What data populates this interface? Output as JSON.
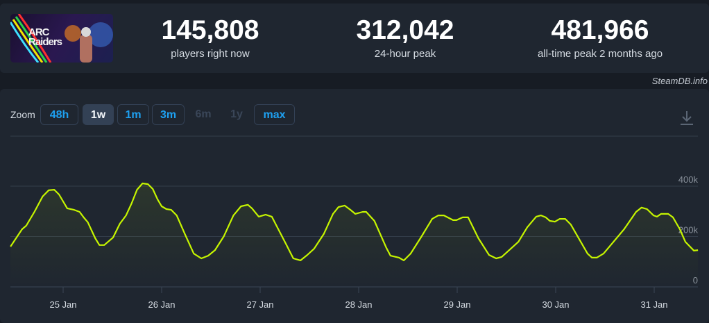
{
  "game": {
    "logo_text_line1": "ARC",
    "logo_text_line2": "Raiders"
  },
  "stats": [
    {
      "value": "145,808",
      "label": "players right now"
    },
    {
      "value": "312,042",
      "label": "24-hour peak"
    },
    {
      "value": "481,966",
      "label": "all-time peak 2 months ago"
    }
  ],
  "credit": "SteamDB.info",
  "zoom": {
    "label": "Zoom",
    "options": [
      {
        "label": "48h",
        "state": "enabled"
      },
      {
        "label": "1w",
        "state": "active"
      },
      {
        "label": "1m",
        "state": "enabled"
      },
      {
        "label": "3m",
        "state": "enabled"
      },
      {
        "label": "6m",
        "state": "disabled"
      },
      {
        "label": "1y",
        "state": "disabled"
      },
      {
        "label": "max",
        "state": "enabled"
      }
    ],
    "download_icon": "download-icon"
  },
  "chart_data": {
    "type": "area",
    "line_color": "#c6f500",
    "grid": true,
    "ylim": [
      0,
      400000
    ],
    "y_ticks": [
      "0",
      "200k",
      "400k"
    ],
    "y_tick_values": [
      0,
      200000,
      400000
    ],
    "x_ticks": [
      "25 Jan",
      "26 Jan",
      "27 Jan",
      "28 Jan",
      "29 Jan",
      "30 Jan",
      "31 Jan"
    ],
    "xlim": [
      "24 Jan 11:10",
      "31 Jan 11:00"
    ],
    "points": [
      [
        "24 Jan 11:10",
        160000
      ],
      [
        "24 Jan 14:00",
        229000
      ],
      [
        "24 Jan 15:00",
        243000
      ],
      [
        "24 Jan 17:00",
        298000
      ],
      [
        "24 Jan 19:00",
        359000
      ],
      [
        "24 Jan 20:30",
        384000
      ],
      [
        "24 Jan 21:50",
        386000
      ],
      [
        "24 Jan 23:00",
        367000
      ],
      [
        "25 Jan 01:00",
        312000
      ],
      [
        "25 Jan 02:40",
        306000
      ],
      [
        "25 Jan 04:00",
        298000
      ],
      [
        "25 Jan 05:00",
        276000
      ],
      [
        "25 Jan 06:00",
        257000
      ],
      [
        "25 Jan 07:50",
        193000
      ],
      [
        "25 Jan 08:50",
        166000
      ],
      [
        "25 Jan 10:00",
        166000
      ],
      [
        "25 Jan 12:10",
        196000
      ],
      [
        "25 Jan 13:50",
        251000
      ],
      [
        "25 Jan 15:20",
        284000
      ],
      [
        "25 Jan 16:40",
        331000
      ],
      [
        "25 Jan 18:00",
        386000
      ],
      [
        "25 Jan 19:20",
        411000
      ],
      [
        "25 Jan 20:40",
        408000
      ],
      [
        "25 Jan 21:50",
        389000
      ],
      [
        "25 Jan 23:00",
        348000
      ],
      [
        "26 Jan 00:00",
        320000
      ],
      [
        "26 Jan 01:10",
        309000
      ],
      [
        "26 Jan 02:20",
        306000
      ],
      [
        "26 Jan 03:40",
        284000
      ],
      [
        "26 Jan 05:40",
        210000
      ],
      [
        "26 Jan 07:50",
        132000
      ],
      [
        "26 Jan 09:40",
        113000
      ],
      [
        "26 Jan 11:20",
        124000
      ],
      [
        "26 Jan 13:00",
        146000
      ],
      [
        "26 Jan 15:10",
        201000
      ],
      [
        "26 Jan 17:30",
        284000
      ],
      [
        "26 Jan 19:20",
        320000
      ],
      [
        "26 Jan 21:00",
        326000
      ],
      [
        "26 Jan 22:00",
        312000
      ],
      [
        "26 Jan 23:40",
        279000
      ],
      [
        "27 Jan 01:20",
        287000
      ],
      [
        "27 Jan 02:50",
        279000
      ],
      [
        "27 Jan 04:10",
        237000
      ],
      [
        "27 Jan 06:25",
        166000
      ],
      [
        "27 Jan 08:05",
        113000
      ],
      [
        "27 Jan 09:50",
        105000
      ],
      [
        "27 Jan 11:30",
        127000
      ],
      [
        "27 Jan 13:10",
        152000
      ],
      [
        "27 Jan 15:30",
        210000
      ],
      [
        "27 Jan 17:45",
        290000
      ],
      [
        "27 Jan 19:05",
        317000
      ],
      [
        "27 Jan 20:35",
        323000
      ],
      [
        "27 Jan 22:00",
        306000
      ],
      [
        "27 Jan 23:10",
        290000
      ],
      [
        "28 Jan 01:00",
        298000
      ],
      [
        "28 Jan 01:50",
        298000
      ],
      [
        "28 Jan 03:50",
        262000
      ],
      [
        "28 Jan 06:45",
        155000
      ],
      [
        "28 Jan 07:45",
        124000
      ],
      [
        "28 Jan 09:50",
        116000
      ],
      [
        "28 Jan 11:00",
        105000
      ],
      [
        "28 Jan 12:40",
        132000
      ],
      [
        "28 Jan 15:10",
        196000
      ],
      [
        "28 Jan 17:55",
        270000
      ],
      [
        "28 Jan 19:25",
        284000
      ],
      [
        "28 Jan 20:45",
        284000
      ],
      [
        "28 Jan 23:00",
        265000
      ],
      [
        "28 Jan 23:50",
        265000
      ],
      [
        "29 Jan 01:20",
        276000
      ],
      [
        "29 Jan 02:40",
        276000
      ],
      [
        "29 Jan 05:10",
        193000
      ],
      [
        "29 Jan 07:45",
        127000
      ],
      [
        "29 Jan 09:30",
        113000
      ],
      [
        "29 Jan 10:50",
        119000
      ],
      [
        "29 Jan 14:55",
        179000
      ],
      [
        "29 Jan 17:05",
        237000
      ],
      [
        "29 Jan 19:15",
        279000
      ],
      [
        "29 Jan 20:25",
        284000
      ],
      [
        "29 Jan 21:35",
        276000
      ],
      [
        "29 Jan 22:35",
        262000
      ],
      [
        "29 Jan 23:50",
        259000
      ],
      [
        "30 Jan 01:00",
        270000
      ],
      [
        "30 Jan 02:20",
        270000
      ],
      [
        "30 Jan 03:40",
        248000
      ],
      [
        "30 Jan 07:45",
        132000
      ],
      [
        "30 Jan 08:50",
        116000
      ],
      [
        "30 Jan 10:00",
        116000
      ],
      [
        "30 Jan 11:40",
        132000
      ],
      [
        "30 Jan 13:50",
        174000
      ],
      [
        "30 Jan 16:40",
        229000
      ],
      [
        "30 Jan 19:35",
        298000
      ],
      [
        "30 Jan 20:55",
        315000
      ],
      [
        "30 Jan 22:15",
        309000
      ],
      [
        "30 Jan 23:50",
        284000
      ],
      [
        "31 Jan 00:40",
        279000
      ],
      [
        "31 Jan 01:40",
        290000
      ],
      [
        "31 Jan 03:25",
        290000
      ],
      [
        "31 Jan 04:35",
        276000
      ],
      [
        "31 Jan 06:15",
        229000
      ],
      [
        "31 Jan 07:35",
        179000
      ],
      [
        "31 Jan 09:40",
        144000
      ],
      [
        "31 Jan 10:40",
        146000
      ]
    ]
  }
}
